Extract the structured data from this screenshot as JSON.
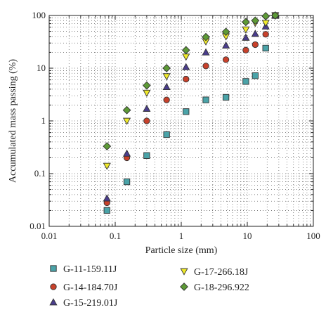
{
  "chart_data": {
    "type": "scatter",
    "title": "",
    "xlabel": "Particle size (mm)",
    "ylabel": "Accumulated mass passing (%)",
    "xscale": "log",
    "yscale": "log",
    "xlim": [
      0.01,
      100
    ],
    "ylim": [
      0.01,
      100
    ],
    "xticks": [
      "0.01",
      "0.1",
      "1",
      "10",
      "100"
    ],
    "yticks": [
      "0.01",
      "0.1",
      "1",
      "10",
      "100"
    ],
    "grid": "dotted minor and major gridlines",
    "legend_position": "bottom",
    "series": [
      {
        "name": "G-11-159.11J",
        "marker": "square",
        "color": "#4aa3a8",
        "x": [
          0.075,
          0.15,
          0.3,
          0.6,
          1.18,
          2.36,
          4.75,
          9.5,
          13.2,
          19,
          26.5
        ],
        "y": [
          0.02,
          0.07,
          0.22,
          0.55,
          1.5,
          2.5,
          2.8,
          5.6,
          7.2,
          24,
          100
        ]
      },
      {
        "name": "G-14-184.70J",
        "marker": "circle",
        "color": "#c8412b",
        "x": [
          0.075,
          0.15,
          0.3,
          0.6,
          1.18,
          2.36,
          4.75,
          9.5,
          13.2,
          19,
          26.5
        ],
        "y": [
          0.028,
          0.2,
          1.0,
          2.5,
          6.2,
          11,
          14.5,
          22,
          28,
          44,
          100
        ]
      },
      {
        "name": "G-15-219.01J",
        "marker": "triangle-up",
        "color": "#4a3d8c",
        "x": [
          0.075,
          0.15,
          0.3,
          0.6,
          1.18,
          2.36,
          4.75,
          9.5,
          13.2,
          19,
          26.5
        ],
        "y": [
          0.034,
          0.24,
          1.7,
          4.4,
          10.5,
          20,
          27,
          38,
          45,
          62,
          100
        ]
      },
      {
        "name": "G-17-266.18J",
        "marker": "triangle-down",
        "color": "#f0ea2b",
        "x": [
          0.075,
          0.15,
          0.3,
          0.6,
          1.18,
          2.36,
          4.75,
          9.5,
          13.2,
          19,
          26.5
        ],
        "y": [
          0.14,
          1.0,
          3.4,
          7.0,
          16.5,
          32,
          40,
          54,
          72,
          72,
          100
        ]
      },
      {
        "name": "G-18-296.922",
        "marker": "diamond",
        "color": "#5d9a36",
        "x": [
          0.075,
          0.15,
          0.3,
          0.6,
          1.18,
          2.36,
          4.75,
          9.5,
          13.2,
          19,
          26.5
        ],
        "y": [
          0.33,
          1.6,
          4.7,
          10,
          22,
          39,
          49,
          75,
          80,
          97,
          100
        ]
      }
    ]
  }
}
